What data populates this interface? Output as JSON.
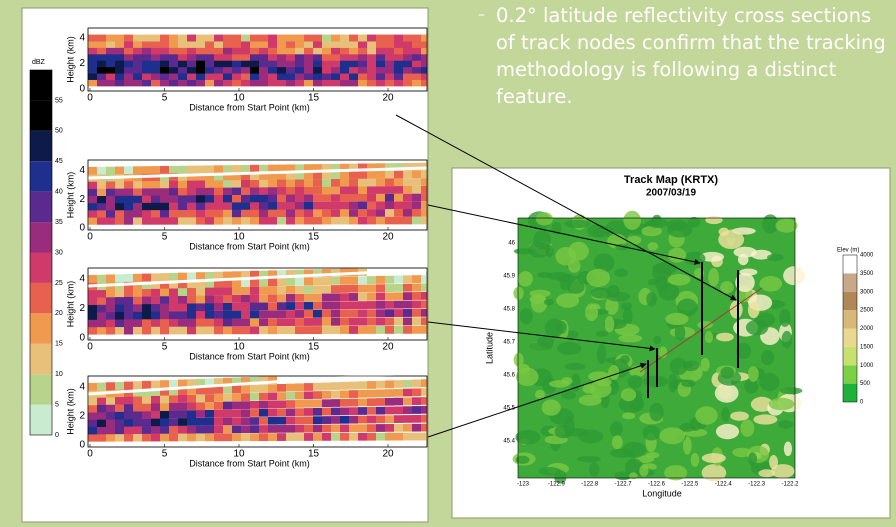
{
  "slide": {
    "bullet": "0.2° latitude reflectivity cross sections of track nodes confirm that the tracking methodology is following a distinct feature.",
    "colorbar": {
      "unit": "dBZ",
      "ticks": [
        0,
        5,
        10,
        15,
        20,
        25,
        30,
        35,
        40,
        45,
        50,
        55
      ]
    },
    "cross_sections": {
      "y_label": "Height (km)",
      "x_label": "Distance from Start Point (km)",
      "x_ticks": [
        0,
        5,
        10,
        15,
        20
      ],
      "y_ticks": [
        0,
        2,
        4
      ]
    },
    "map": {
      "title": "Track Map (KRTX)",
      "subtitle": "2007/03/19",
      "x_label": "Longitude",
      "y_label": "Latitude",
      "x_ticks": [
        -123,
        -122.9,
        -122.8,
        -122.7,
        -122.6,
        -122.5,
        -122.4,
        -122.3,
        -122.2
      ],
      "y_ticks": [
        45.4,
        45.5,
        45.6,
        45.7,
        45.8,
        45.9,
        46
      ],
      "legend_title": "Elev (m)",
      "legend_ticks": [
        0,
        500,
        1000,
        1500,
        2000,
        2500,
        3000,
        3500,
        4000
      ]
    }
  }
}
